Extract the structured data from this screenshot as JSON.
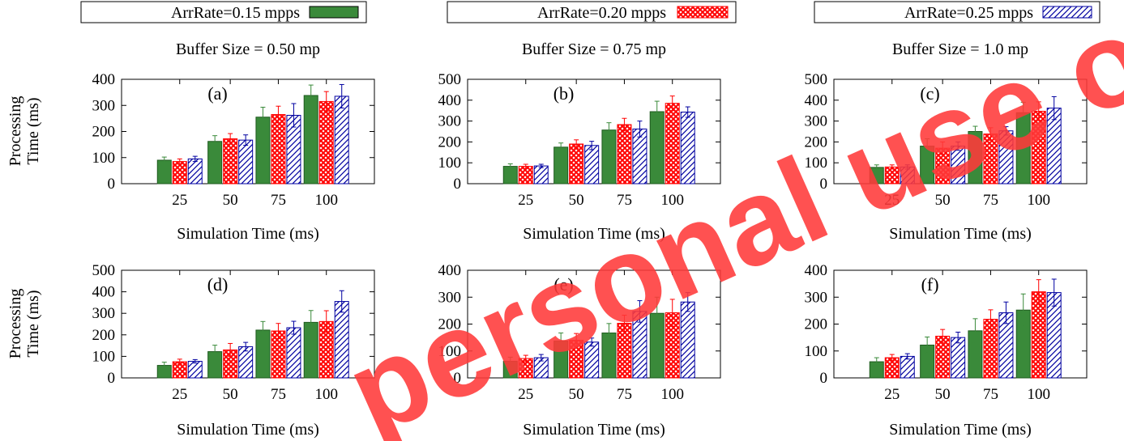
{
  "legend": [
    {
      "label": "ArrRate=0.15 mpps",
      "pattern": "solid"
    },
    {
      "label": "ArrRate=0.20 mpps",
      "pattern": "crosshatch"
    },
    {
      "label": "ArrRate=0.25 mpps",
      "pattern": "diagonal"
    }
  ],
  "column_titles": [
    "Buffer Size = 0.50 mp",
    "Buffer Size = 0.75 mp",
    "Buffer Size = 1.0 mp"
  ],
  "ylabel_lines": [
    "Processing",
    "Time (ms)"
  ],
  "xlabel": "Simulation Time (ms)",
  "watermark": "personal use only",
  "colors": {
    "series1": "#3a8a3a",
    "series2": "#ff0000",
    "series3": "#0000a0",
    "watermark": "#ff3a3a"
  },
  "chart_data": [
    {
      "type": "bar",
      "panel": "(a)",
      "categories": [
        "25",
        "50",
        "75",
        "100"
      ],
      "ylim": [
        0,
        400
      ],
      "yticks": [
        0,
        100,
        200,
        300,
        400
      ],
      "series": [
        {
          "name": "ArrRate=0.15 mpps",
          "values": [
            90,
            162,
            255,
            338
          ],
          "err": [
            12,
            22,
            38,
            40
          ]
        },
        {
          "name": "ArrRate=0.20 mpps",
          "values": [
            85,
            172,
            265,
            315
          ],
          "err": [
            10,
            20,
            32,
            38
          ]
        },
        {
          "name": "ArrRate=0.25 mpps",
          "values": [
            95,
            167,
            262,
            335
          ],
          "err": [
            10,
            20,
            45,
            45
          ]
        }
      ]
    },
    {
      "type": "bar",
      "panel": "(b)",
      "categories": [
        "25",
        "50",
        "75",
        "100"
      ],
      "ylim": [
        0,
        500
      ],
      "yticks": [
        0,
        100,
        200,
        300,
        400,
        500
      ],
      "series": [
        {
          "name": "ArrRate=0.15 mpps",
          "values": [
            83,
            175,
            257,
            345
          ],
          "err": [
            12,
            20,
            35,
            50
          ]
        },
        {
          "name": "ArrRate=0.20 mpps",
          "values": [
            83,
            190,
            283,
            385
          ],
          "err": [
            10,
            20,
            30,
            35
          ]
        },
        {
          "name": "ArrRate=0.25 mpps",
          "values": [
            85,
            183,
            262,
            343
          ],
          "err": [
            8,
            20,
            38,
            25
          ]
        }
      ]
    },
    {
      "type": "bar",
      "panel": "(c)",
      "categories": [
        "25",
        "50",
        "75",
        "100"
      ],
      "ylim": [
        0,
        500
      ],
      "yticks": [
        0,
        100,
        200,
        300,
        400,
        500
      ],
      "series": [
        {
          "name": "ArrRate=0.15 mpps",
          "values": [
            78,
            180,
            250,
            340
          ],
          "err": [
            12,
            35,
            25,
            50
          ]
        },
        {
          "name": "ArrRate=0.20 mpps",
          "values": [
            80,
            170,
            238,
            347
          ],
          "err": [
            10,
            30,
            30,
            45
          ]
        },
        {
          "name": "ArrRate=0.25 mpps",
          "values": [
            80,
            180,
            253,
            362
          ],
          "err": [
            10,
            20,
            20,
            55
          ]
        }
      ]
    },
    {
      "type": "bar",
      "panel": "(d)",
      "categories": [
        "25",
        "50",
        "75",
        "100"
      ],
      "ylim": [
        0,
        500
      ],
      "yticks": [
        0,
        100,
        200,
        300,
        400,
        500
      ],
      "series": [
        {
          "name": "ArrRate=0.15 mpps",
          "values": [
            58,
            122,
            222,
            258
          ],
          "err": [
            15,
            30,
            40,
            55
          ]
        },
        {
          "name": "ArrRate=0.20 mpps",
          "values": [
            75,
            130,
            218,
            262
          ],
          "err": [
            12,
            30,
            35,
            50
          ]
        },
        {
          "name": "ArrRate=0.25 mpps",
          "values": [
            77,
            145,
            233,
            355
          ],
          "err": [
            8,
            20,
            30,
            50
          ]
        }
      ]
    },
    {
      "type": "bar",
      "panel": "(e)",
      "categories": [
        "25",
        "50",
        "75",
        "100"
      ],
      "ylim": [
        0,
        400
      ],
      "yticks": [
        0,
        100,
        200,
        300,
        400
      ],
      "series": [
        {
          "name": "ArrRate=0.15 mpps",
          "values": [
            62,
            137,
            167,
            240
          ],
          "err": [
            15,
            30,
            35,
            60
          ]
        },
        {
          "name": "ArrRate=0.20 mpps",
          "values": [
            72,
            140,
            203,
            242
          ],
          "err": [
            12,
            25,
            30,
            50
          ]
        },
        {
          "name": "ArrRate=0.25 mpps",
          "values": [
            75,
            133,
            247,
            282
          ],
          "err": [
            12,
            15,
            40,
            35
          ]
        }
      ]
    },
    {
      "type": "bar",
      "panel": "(f)",
      "categories": [
        "25",
        "50",
        "75",
        "100"
      ],
      "ylim": [
        0,
        400
      ],
      "yticks": [
        0,
        100,
        200,
        300,
        400
      ],
      "series": [
        {
          "name": "ArrRate=0.15 mpps",
          "values": [
            60,
            122,
            175,
            252
          ],
          "err": [
            15,
            30,
            45,
            60
          ]
        },
        {
          "name": "ArrRate=0.20 mpps",
          "values": [
            75,
            155,
            218,
            320
          ],
          "err": [
            12,
            25,
            35,
            45
          ]
        },
        {
          "name": "ArrRate=0.25 mpps",
          "values": [
            80,
            150,
            242,
            317
          ],
          "err": [
            10,
            20,
            40,
            50
          ]
        }
      ]
    }
  ]
}
